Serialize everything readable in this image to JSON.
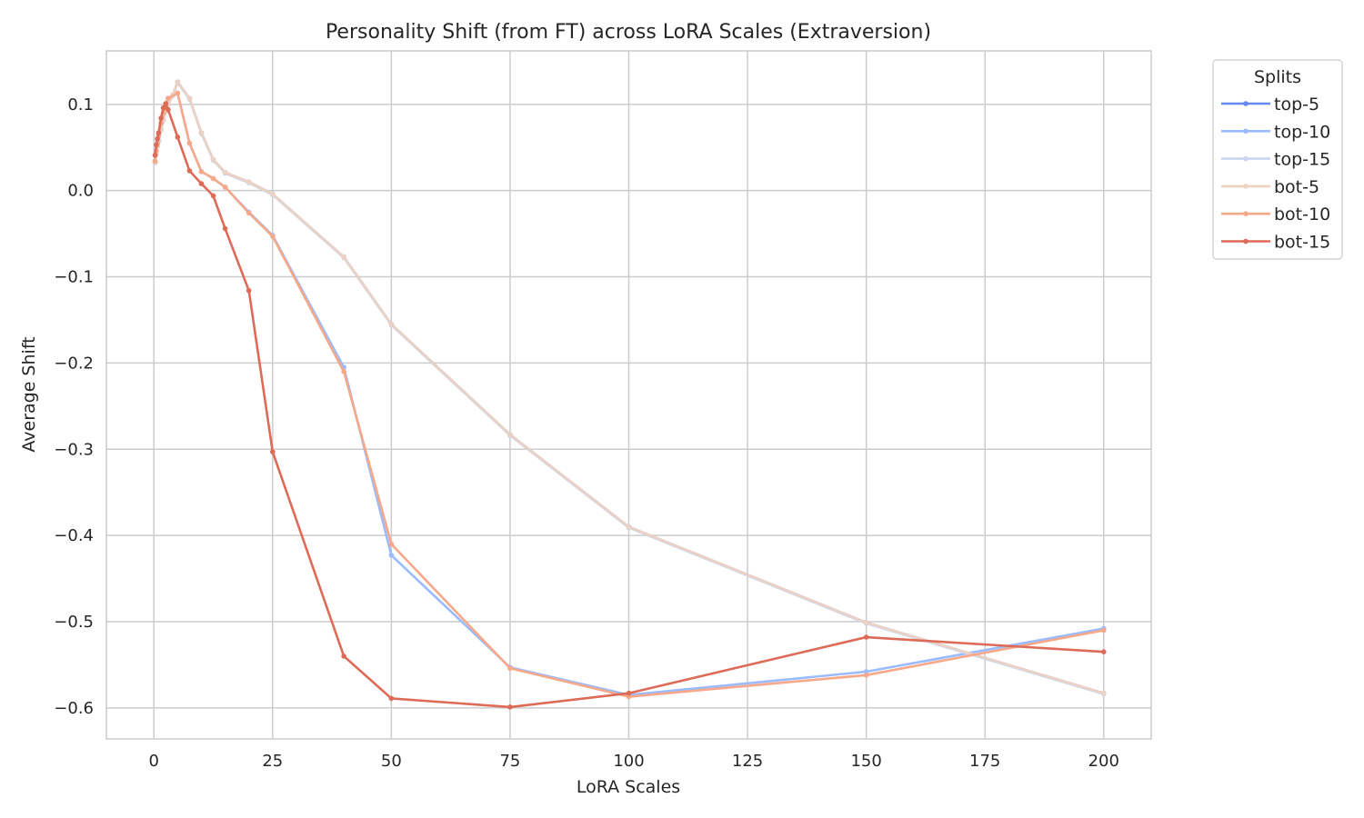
{
  "chart_data": {
    "type": "line",
    "title": "Personality Shift (from FT) across LoRA Scales (Extraversion)",
    "xlabel": "LoRA Scales",
    "ylabel": "Average Shift",
    "xlim": [
      -10,
      210
    ],
    "ylim": [
      -0.636,
      0.162
    ],
    "xticks": [
      0,
      25,
      50,
      75,
      100,
      125,
      150,
      175,
      200
    ],
    "xtick_labels": [
      "0",
      "25",
      "50",
      "75",
      "100",
      "125",
      "150",
      "175",
      "200"
    ],
    "yticks": [
      0.1,
      0.0,
      -0.1,
      -0.2,
      -0.3,
      -0.4,
      -0.5,
      -0.6
    ],
    "ytick_labels": [
      "0.1",
      "0.0",
      "−0.1",
      "−0.2",
      "−0.3",
      "−0.4",
      "−0.5",
      "−0.6"
    ],
    "grid": true,
    "legend": {
      "title": "Splits",
      "placement": "outside-top-right"
    },
    "series": [
      {
        "name": "top-5",
        "color": "#6788ee",
        "x": [
          0.25,
          0.5,
          0.75,
          1,
          1.5,
          2,
          2.5,
          3,
          4,
          5,
          7.5,
          10,
          12.5,
          15,
          20,
          25,
          40,
          50,
          75,
          100,
          150,
          200
        ],
        "y": [
          0.033,
          0.043,
          0.052,
          0.058,
          0.071,
          0.082,
          0.092,
          0.101,
          0.111,
          0.126,
          0.107,
          0.067,
          0.036,
          0.021,
          0.01,
          -0.004,
          -0.077,
          -0.155,
          -0.283,
          -0.39,
          -0.501,
          -0.583
        ]
      },
      {
        "name": "top-10",
        "color": "#9abbff",
        "x": [
          0.25,
          0.5,
          0.75,
          1,
          1.5,
          2,
          2.5,
          3,
          5,
          7.5,
          10,
          12.5,
          15,
          20,
          25,
          40,
          50,
          75,
          100,
          150,
          200
        ],
        "y": [
          0.034,
          0.046,
          0.055,
          0.064,
          0.078,
          0.09,
          0.1,
          0.107,
          0.113,
          0.055,
          0.022,
          0.014,
          0.004,
          -0.025,
          -0.052,
          -0.205,
          -0.423,
          -0.553,
          -0.585,
          -0.558,
          -0.508
        ]
      },
      {
        "name": "top-15",
        "color": "#c9d7f0",
        "x": [
          0.25,
          0.5,
          0.75,
          1,
          1.5,
          2,
          2.5,
          3,
          4,
          5,
          7.5,
          10,
          12.5,
          15,
          20,
          25,
          40,
          50,
          75,
          100,
          150,
          200
        ],
        "y": [
          0.032,
          0.042,
          0.051,
          0.057,
          0.07,
          0.081,
          0.091,
          0.1,
          0.11,
          0.125,
          0.106,
          0.066,
          0.035,
          0.02,
          0.009,
          -0.005,
          -0.078,
          -0.156,
          -0.284,
          -0.391,
          -0.502,
          -0.584
        ]
      },
      {
        "name": "bot-5",
        "color": "#edd1c2",
        "x": [
          0.25,
          0.5,
          0.75,
          1,
          1.5,
          2,
          2.5,
          3,
          4,
          5,
          7.5,
          10,
          12.5,
          15,
          20,
          25,
          40,
          50,
          75,
          100,
          150,
          200
        ],
        "y": [
          0.033,
          0.043,
          0.052,
          0.058,
          0.071,
          0.082,
          0.092,
          0.101,
          0.111,
          0.126,
          0.107,
          0.067,
          0.036,
          0.021,
          0.01,
          -0.004,
          -0.077,
          -0.155,
          -0.283,
          -0.39,
          -0.501,
          -0.583
        ]
      },
      {
        "name": "bot-10",
        "color": "#f7a889",
        "x": [
          0.25,
          0.5,
          0.75,
          1,
          1.5,
          2,
          2.5,
          3,
          5,
          7.5,
          10,
          12.5,
          15,
          20,
          25,
          40,
          50,
          75,
          100,
          150,
          200
        ],
        "y": [
          0.034,
          0.046,
          0.055,
          0.064,
          0.078,
          0.09,
          0.1,
          0.107,
          0.113,
          0.055,
          0.022,
          0.014,
          0.004,
          -0.026,
          -0.053,
          -0.21,
          -0.41,
          -0.554,
          -0.587,
          -0.562,
          -0.51
        ]
      },
      {
        "name": "bot-15",
        "color": "#dd6b57",
        "x": [
          0.25,
          0.5,
          0.75,
          1,
          1.5,
          2,
          2.5,
          3,
          5,
          7.5,
          10,
          12.5,
          15,
          20,
          25,
          40,
          50,
          75,
          100,
          150,
          200
        ],
        "y": [
          0.041,
          0.053,
          0.06,
          0.067,
          0.084,
          0.096,
          0.101,
          0.094,
          0.062,
          0.023,
          0.008,
          -0.006,
          -0.044,
          -0.116,
          -0.303,
          -0.54,
          -0.589,
          -0.599,
          -0.583,
          -0.518,
          -0.535
        ]
      }
    ]
  }
}
